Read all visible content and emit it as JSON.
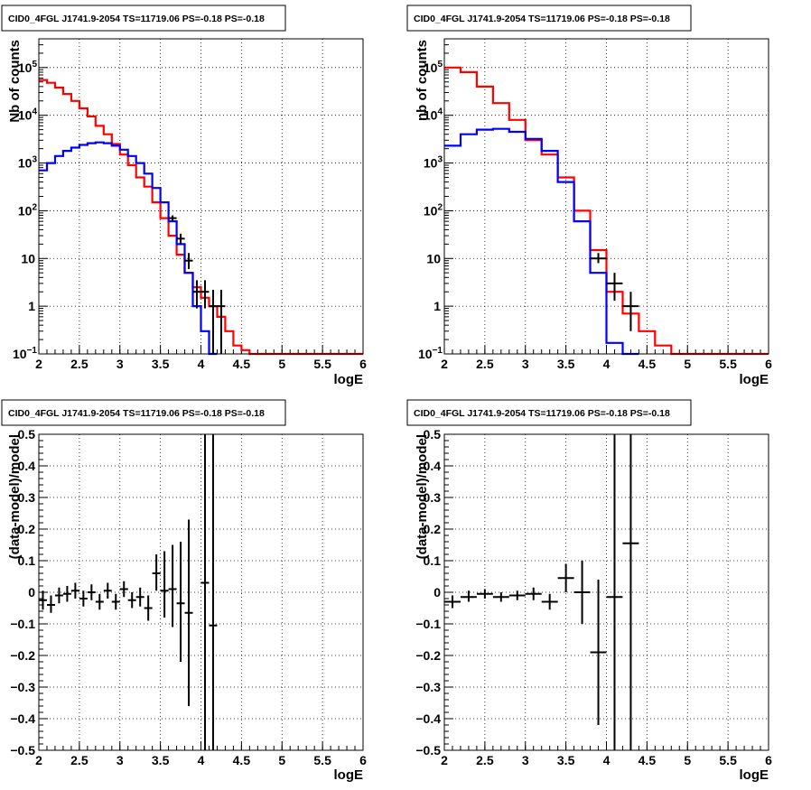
{
  "chart_data": [
    {
      "type": "line",
      "panel": "top-left",
      "title": "CID0_4FGL J1741.9-2054 TS=11719.06 PS=-0.18 PS=-0.18",
      "xlabel": "logE",
      "ylabel": "Nb of counts",
      "xlim": [
        2,
        6
      ],
      "ylim": [
        0.1,
        400000
      ],
      "yscale": "log",
      "grid": true,
      "xticks": [
        "2",
        "2.5",
        "3",
        "3.5",
        "4",
        "4.5",
        "5",
        "5.5",
        "6"
      ],
      "yticks": [
        {
          "v": 0.1,
          "base": "10",
          "exp": "−1"
        },
        {
          "v": 1,
          "base": "1",
          "exp": ""
        },
        {
          "v": 10,
          "base": "10",
          "exp": ""
        },
        {
          "v": 100,
          "base": "10",
          "exp": "2"
        },
        {
          "v": 1000,
          "base": "10",
          "exp": "3"
        },
        {
          "v": 10000,
          "base": "10",
          "exp": "4"
        },
        {
          "v": 100000,
          "base": "10",
          "exp": "5"
        }
      ],
      "series": [
        {
          "color": "#ff0000",
          "style": "step",
          "edges": [
            2.0,
            2.1,
            2.2,
            2.3,
            2.4,
            2.5,
            2.6,
            2.7,
            2.8,
            2.9,
            3.0,
            3.1,
            3.2,
            3.3,
            3.4,
            3.5,
            3.6,
            3.7,
            3.8,
            3.9,
            4.0,
            4.1,
            4.2,
            4.3,
            4.4,
            4.5,
            4.6,
            4.7,
            4.8,
            4.9,
            5.0,
            5.1,
            5.2,
            5.3,
            5.4,
            5.5,
            5.6,
            5.7,
            5.8,
            5.9,
            6.0
          ],
          "values": [
            55000,
            48000,
            38000,
            28000,
            20000,
            14000,
            9500,
            6000,
            4000,
            2500,
            1500,
            900,
            500,
            320,
            150,
            70,
            30,
            12,
            5,
            2.5,
            1.5,
            1.0,
            0.6,
            0.3,
            0.15,
            0.12,
            0.1,
            0.1,
            0.1,
            0.1,
            0.1,
            0.1,
            0.1,
            0.1,
            0.1,
            0.1,
            0.1,
            0.1,
            0.1,
            0.1
          ]
        },
        {
          "color": "#0000ff",
          "style": "step",
          "edges": [
            2.0,
            2.1,
            2.2,
            2.3,
            2.4,
            2.5,
            2.6,
            2.7,
            2.8,
            2.9,
            3.0,
            3.1,
            3.2,
            3.3,
            3.4,
            3.5,
            3.6,
            3.7,
            3.8,
            3.9,
            4.0,
            4.1,
            4.2
          ],
          "values": [
            700,
            1000,
            1400,
            1800,
            2100,
            2400,
            2600,
            2700,
            2600,
            2300,
            1900,
            1400,
            1000,
            600,
            300,
            150,
            60,
            20,
            5,
            1.0,
            0.3,
            0.1
          ]
        }
      ],
      "points": [
        {
          "x": 3.65,
          "y": 70,
          "xerr": 0.05,
          "ylo": 60,
          "yhi": 80
        },
        {
          "x": 3.75,
          "y": 26,
          "xerr": 0.05,
          "ylo": 20,
          "yhi": 33
        },
        {
          "x": 3.85,
          "y": 9,
          "xerr": 0.05,
          "ylo": 6,
          "yhi": 13
        },
        {
          "x": 3.95,
          "y": 2.0,
          "xerr": 0.05,
          "ylo": 0.9,
          "yhi": 3.5
        },
        {
          "x": 4.05,
          "y": 2.0,
          "xerr": 0.05,
          "ylo": 0.9,
          "yhi": 3.5
        },
        {
          "x": 4.15,
          "y": 1.0,
          "xerr": 0.05,
          "ylo": 0.1,
          "yhi": 2.2
        },
        {
          "x": 4.25,
          "y": 1.0,
          "xerr": 0.05,
          "ylo": 0.1,
          "yhi": 2.2
        }
      ]
    },
    {
      "type": "line",
      "panel": "top-right",
      "title": "CID0_4FGL J1741.9-2054 TS=11719.06 PS=-0.18 PS=-0.18",
      "xlabel": "logE",
      "ylabel": "nb of counts",
      "xlim": [
        2,
        6
      ],
      "ylim": [
        0.1,
        400000
      ],
      "yscale": "log",
      "grid": true,
      "xticks": [
        "2",
        "2.5",
        "3",
        "3.5",
        "4",
        "4.5",
        "5",
        "5.5",
        "6"
      ],
      "yticks": [
        {
          "v": 0.1,
          "base": "10",
          "exp": "−1"
        },
        {
          "v": 1,
          "base": "1",
          "exp": ""
        },
        {
          "v": 10,
          "base": "10",
          "exp": ""
        },
        {
          "v": 100,
          "base": "10",
          "exp": "2"
        },
        {
          "v": 1000,
          "base": "10",
          "exp": "3"
        },
        {
          "v": 10000,
          "base": "10",
          "exp": "4"
        },
        {
          "v": 100000,
          "base": "10",
          "exp": "5"
        }
      ],
      "series": [
        {
          "color": "#ff0000",
          "style": "step",
          "edges": [
            2.0,
            2.2,
            2.4,
            2.6,
            2.8,
            3.0,
            3.2,
            3.4,
            3.6,
            3.8,
            4.0,
            4.2,
            4.4,
            4.6,
            4.8,
            5.0,
            5.2,
            5.4,
            5.6,
            5.8,
            6.0
          ],
          "values": [
            100000,
            80000,
            40000,
            18000,
            8000,
            3000,
            1500,
            500,
            100,
            15,
            2.0,
            0.7,
            0.3,
            0.15,
            0.1,
            0.1,
            0.1,
            0.1,
            0.1,
            0.1
          ]
        },
        {
          "color": "#0000ff",
          "style": "step",
          "edges": [
            2.0,
            2.2,
            2.4,
            2.6,
            2.8,
            3.0,
            3.2,
            3.4,
            3.6,
            3.8,
            4.0,
            4.2,
            4.4
          ],
          "values": [
            2300,
            4000,
            5000,
            5200,
            4500,
            3200,
            1800,
            400,
            60,
            5,
            0.17,
            0.1
          ]
        }
      ],
      "points": [
        {
          "x": 3.9,
          "y": 10,
          "xerr": 0.1,
          "ylo": 8,
          "yhi": 13
        },
        {
          "x": 4.1,
          "y": 3.0,
          "xerr": 0.1,
          "ylo": 1.3,
          "yhi": 5.0
        },
        {
          "x": 4.3,
          "y": 1.0,
          "xerr": 0.1,
          "ylo": 0.3,
          "yhi": 2.0
        }
      ]
    },
    {
      "type": "scatter",
      "panel": "bottom-left",
      "title": "CID0_4FGL J1741.9-2054 TS=11719.06 PS=-0.18 PS=-0.18",
      "xlabel": "logE",
      "ylabel": "(data-model)/model",
      "xlim": [
        2,
        6
      ],
      "ylim": [
        -0.5,
        0.5
      ],
      "yscale": "linear",
      "grid": true,
      "xticks": [
        "2",
        "2.5",
        "3",
        "3.5",
        "4",
        "4.5",
        "5",
        "5.5",
        "6"
      ],
      "yticks": [
        "−0.5",
        "−0.4",
        "−0.3",
        "−0.2",
        "−0.1",
        "0",
        "0.1",
        "0.2",
        "0.3",
        "0.4",
        "0.5"
      ],
      "points": [
        {
          "x": 2.05,
          "y": -0.025,
          "xerr": 0.05,
          "ylo": -0.055,
          "yhi": 0.005
        },
        {
          "x": 2.15,
          "y": -0.04,
          "xerr": 0.05,
          "ylo": -0.065,
          "yhi": -0.01
        },
        {
          "x": 2.25,
          "y": -0.01,
          "xerr": 0.05,
          "ylo": -0.035,
          "yhi": 0.015
        },
        {
          "x": 2.35,
          "y": -0.005,
          "xerr": 0.05,
          "ylo": -0.03,
          "yhi": 0.02
        },
        {
          "x": 2.45,
          "y": 0.005,
          "xerr": 0.05,
          "ylo": -0.02,
          "yhi": 0.03
        },
        {
          "x": 2.55,
          "y": -0.02,
          "xerr": 0.05,
          "ylo": -0.045,
          "yhi": 0.005
        },
        {
          "x": 2.65,
          "y": 0.0,
          "xerr": 0.05,
          "ylo": -0.025,
          "yhi": 0.025
        },
        {
          "x": 2.75,
          "y": -0.03,
          "xerr": 0.05,
          "ylo": -0.055,
          "yhi": -0.005
        },
        {
          "x": 2.85,
          "y": 0.005,
          "xerr": 0.05,
          "ylo": -0.02,
          "yhi": 0.03
        },
        {
          "x": 2.95,
          "y": -0.03,
          "xerr": 0.05,
          "ylo": -0.055,
          "yhi": -0.005
        },
        {
          "x": 3.05,
          "y": 0.01,
          "xerr": 0.05,
          "ylo": -0.015,
          "yhi": 0.035
        },
        {
          "x": 3.15,
          "y": -0.025,
          "xerr": 0.05,
          "ylo": -0.05,
          "yhi": 0.0
        },
        {
          "x": 3.25,
          "y": -0.015,
          "xerr": 0.05,
          "ylo": -0.045,
          "yhi": 0.015
        },
        {
          "x": 3.35,
          "y": -0.05,
          "xerr": 0.05,
          "ylo": -0.09,
          "yhi": -0.01
        },
        {
          "x": 3.45,
          "y": 0.06,
          "xerr": 0.05,
          "ylo": 0.005,
          "yhi": 0.12
        },
        {
          "x": 3.55,
          "y": 0.005,
          "xerr": 0.05,
          "ylo": -0.08,
          "yhi": 0.13
        },
        {
          "x": 3.65,
          "y": 0.01,
          "xerr": 0.05,
          "ylo": -0.11,
          "yhi": 0.15
        },
        {
          "x": 3.75,
          "y": -0.035,
          "xerr": 0.05,
          "ylo": -0.22,
          "yhi": 0.16
        },
        {
          "x": 3.85,
          "y": -0.065,
          "xerr": 0.05,
          "ylo": -0.36,
          "yhi": 0.23
        },
        {
          "x": 4.05,
          "y": 0.03,
          "xerr": 0.05,
          "ylo": -0.5,
          "yhi": 0.5
        },
        {
          "x": 4.15,
          "y": -0.105,
          "xerr": 0.05,
          "ylo": -0.5,
          "yhi": 0.5
        }
      ]
    },
    {
      "type": "scatter",
      "panel": "bottom-right",
      "title": "CID0_4FGL J1741.9-2054 TS=11719.06 PS=-0.18 PS=-0.18",
      "xlabel": "logE",
      "ylabel": "(data-model)/model",
      "xlim": [
        2,
        6
      ],
      "ylim": [
        -0.5,
        0.5
      ],
      "yscale": "linear",
      "grid": true,
      "xticks": [
        "2",
        "2.5",
        "3",
        "3.5",
        "4",
        "4.5",
        "5",
        "5.5",
        "6"
      ],
      "yticks": [
        "−0.5",
        "−0.4",
        "−0.3",
        "−0.2",
        "−0.1",
        "0",
        "0.1",
        "0.2",
        "0.3",
        "0.4",
        "0.5"
      ],
      "points": [
        {
          "x": 2.1,
          "y": -0.03,
          "xerr": 0.1,
          "ylo": -0.05,
          "yhi": -0.01
        },
        {
          "x": 2.3,
          "y": -0.015,
          "xerr": 0.1,
          "ylo": -0.03,
          "yhi": 0.005
        },
        {
          "x": 2.5,
          "y": -0.005,
          "xerr": 0.1,
          "ylo": -0.02,
          "yhi": 0.01
        },
        {
          "x": 2.7,
          "y": -0.015,
          "xerr": 0.1,
          "ylo": -0.03,
          "yhi": 0.0
        },
        {
          "x": 2.9,
          "y": -0.01,
          "xerr": 0.1,
          "ylo": -0.025,
          "yhi": 0.005
        },
        {
          "x": 3.1,
          "y": -0.005,
          "xerr": 0.1,
          "ylo": -0.025,
          "yhi": 0.015
        },
        {
          "x": 3.3,
          "y": -0.03,
          "xerr": 0.1,
          "ylo": -0.055,
          "yhi": -0.005
        },
        {
          "x": 3.5,
          "y": 0.045,
          "xerr": 0.1,
          "ylo": 0.0,
          "yhi": 0.09
        },
        {
          "x": 3.7,
          "y": 0.0,
          "xerr": 0.1,
          "ylo": -0.1,
          "yhi": 0.1
        },
        {
          "x": 3.9,
          "y": -0.19,
          "xerr": 0.1,
          "ylo": -0.42,
          "yhi": 0.04
        },
        {
          "x": 4.1,
          "y": -0.015,
          "xerr": 0.1,
          "ylo": -0.5,
          "yhi": 0.5
        },
        {
          "x": 4.3,
          "y": 0.155,
          "xerr": 0.1,
          "ylo": -0.5,
          "yhi": 0.5
        }
      ]
    }
  ]
}
